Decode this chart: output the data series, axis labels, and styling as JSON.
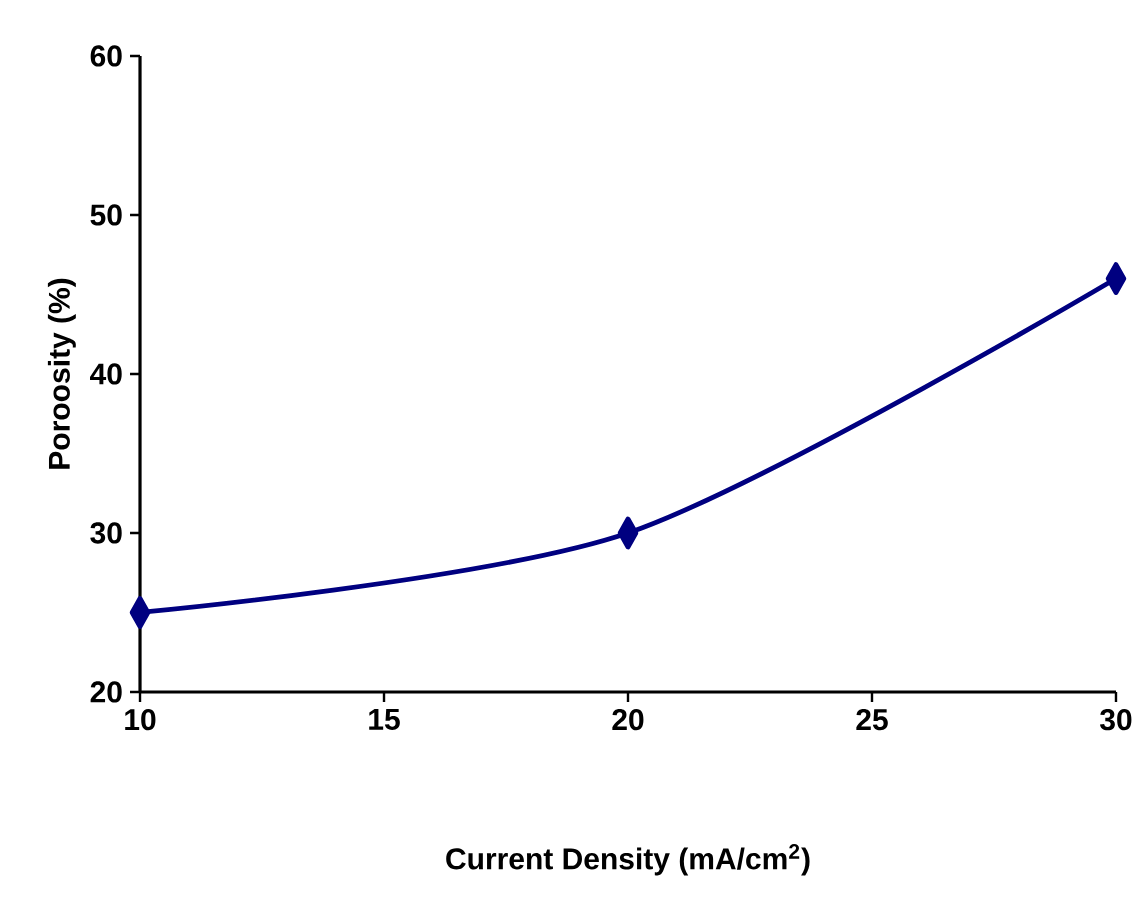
{
  "chart_data": {
    "type": "line",
    "xlabel": "Current Density (mA/cm$^{2}$)",
    "ylabel": "Poroosity (%)",
    "x": [
      10,
      20,
      30
    ],
    "series": [
      {
        "color": "#000080",
        "values": [
          25,
          30,
          46
        ]
      }
    ],
    "xlim": [
      10,
      30
    ],
    "ylim": [
      20,
      60
    ],
    "xticks": [
      10,
      15,
      20,
      25,
      30
    ],
    "yticks": [
      20,
      30,
      40,
      50,
      60
    ],
    "marker": "diamond",
    "line_style": "solid"
  }
}
